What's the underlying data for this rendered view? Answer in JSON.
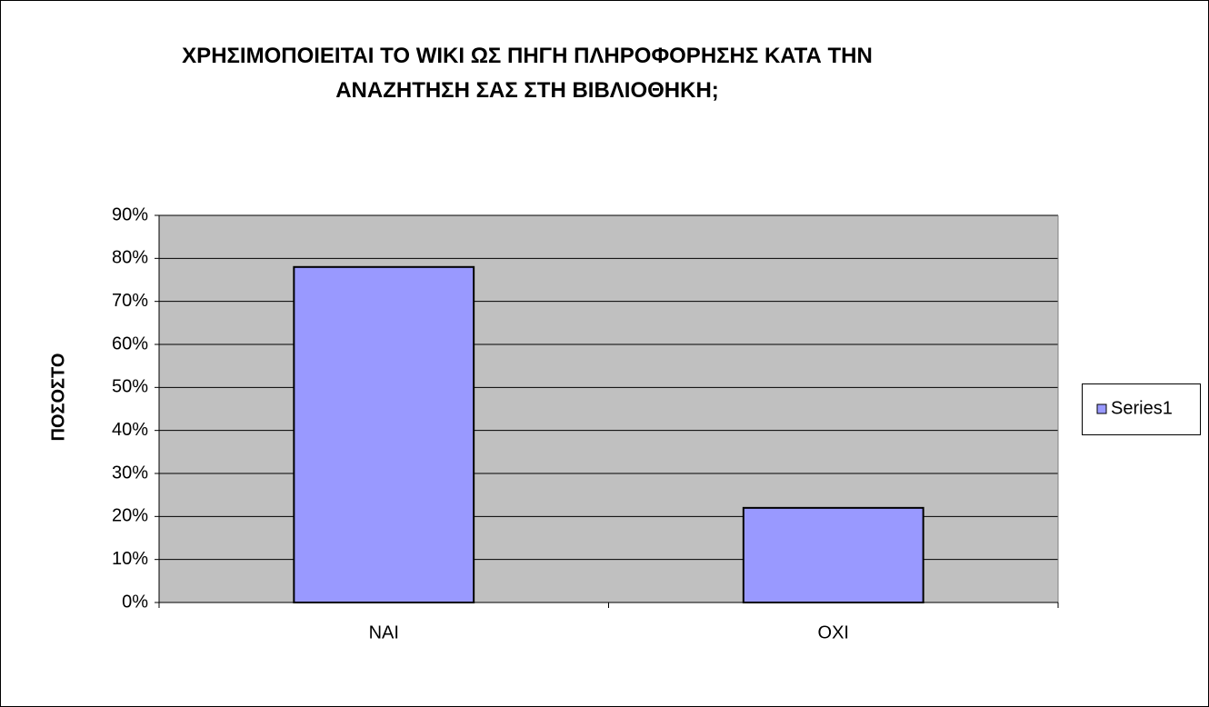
{
  "chart_data": {
    "type": "bar",
    "title": "ΧΡΗΣΙΜΟΠΟΙΕΙΤΑΙ ΤΟ WIKI ΩΣ ΠΗΓΗ ΠΛΗΡΟΦΟΡΗΣΗΣ ΚΑΤΑ ΤΗΝ ΑΝΑΖΗΤΗΣΗ ΣΑΣ ΣΤΗ ΒΙΒΛΙΟΘΗΚΗ;",
    "y_label": "ΠΟΣΟΣΤΟ",
    "categories": [
      "ΝΑΙ",
      "ΟΧΙ"
    ],
    "series": [
      {
        "name": "Series1",
        "color": "#9999ff",
        "values": [
          78,
          22
        ]
      }
    ],
    "ylim": [
      0,
      90
    ],
    "yticks": [
      {
        "value": 0,
        "label": "0%"
      },
      {
        "value": 10,
        "label": "10%"
      },
      {
        "value": 20,
        "label": "20%"
      },
      {
        "value": 30,
        "label": "30%"
      },
      {
        "value": 40,
        "label": "40%"
      },
      {
        "value": 50,
        "label": "50%"
      },
      {
        "value": 60,
        "label": "60%"
      },
      {
        "value": 70,
        "label": "70%"
      },
      {
        "value": 80,
        "label": "80%"
      },
      {
        "value": 90,
        "label": "90%"
      }
    ],
    "grid": true,
    "legend": "right"
  }
}
